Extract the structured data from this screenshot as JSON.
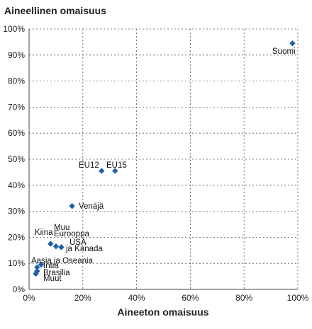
{
  "chart_data": {
    "type": "scatter",
    "ylabel": "Aineellinen omaisuus",
    "xlabel": "Aineeton omaisuus",
    "xlim": [
      0,
      100
    ],
    "ylim": [
      0,
      100
    ],
    "x_ticks": [
      "0%",
      "20%",
      "40%",
      "60%",
      "80%",
      "100%"
    ],
    "y_ticks": [
      "0%",
      "10%",
      "20%",
      "30%",
      "40%",
      "50%",
      "60%",
      "70%",
      "80%",
      "90%",
      "100%"
    ],
    "grid": true,
    "marker_color": "#1f5fa8",
    "points": [
      {
        "label": "Suomi",
        "x": 98,
        "y": 94.5
      },
      {
        "label": "EU12",
        "x": 27,
        "y": 45.5
      },
      {
        "label": "EU15",
        "x": 32,
        "y": 45.5
      },
      {
        "label": "Venäjä",
        "x": 16,
        "y": 32
      },
      {
        "label": "Kiina",
        "x": 8,
        "y": 17.5
      },
      {
        "label": "Muu Eurooppa",
        "x": 10,
        "y": 16.5
      },
      {
        "label": "USA ja Kanada",
        "x": 12,
        "y": 16.2
      },
      {
        "label": "Aasia ja Oseania",
        "x": 3,
        "y": 8.5
      },
      {
        "label": "Intia",
        "x": 4.5,
        "y": 9.5
      },
      {
        "label": "Brasilia",
        "x": 3,
        "y": 7
      },
      {
        "label": "Muut",
        "x": 2.5,
        "y": 6
      }
    ],
    "point_labels": [
      {
        "text": "Suomi"
      },
      {
        "text": "EU12"
      },
      {
        "text": "EU15"
      },
      {
        "text": "Venäjä"
      },
      {
        "text": "Muu"
      },
      {
        "text": "Kiina"
      },
      {
        "text": "Eurooppa"
      },
      {
        "text": "USA"
      },
      {
        "text": "ja Kanada"
      },
      {
        "text": "Aasia ja Oseania"
      },
      {
        "text": "Intia"
      },
      {
        "text": "Brasilia"
      },
      {
        "text": "Muut"
      }
    ]
  }
}
